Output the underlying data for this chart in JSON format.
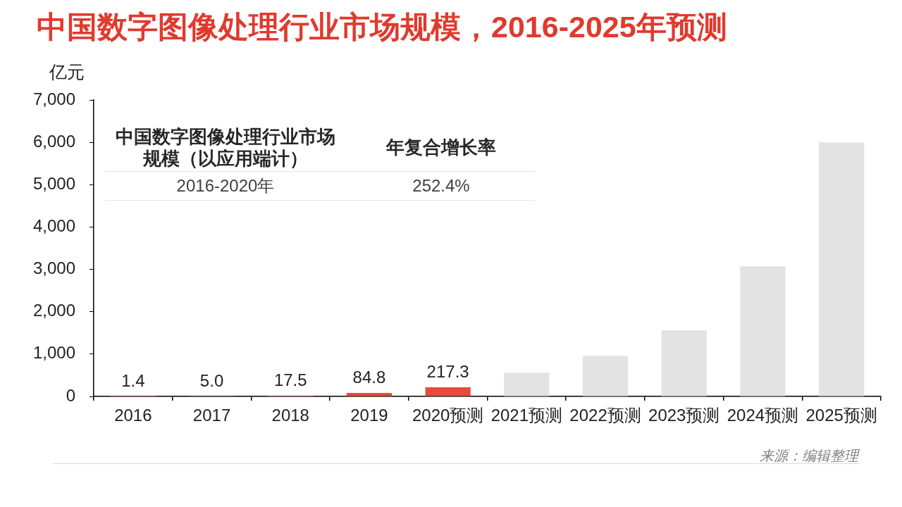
{
  "chart_data": {
    "type": "bar",
    "title": "中国数字图像处理行业市场规模，2016-2025年预测",
    "ylabel": "亿元",
    "categories": [
      "2016",
      "2017",
      "2018",
      "2019",
      "2020预测",
      "2021预测",
      "2022预测",
      "2023预测",
      "2024预测",
      "2025预测"
    ],
    "values": [
      1.4,
      5,
      17.5,
      84.8,
      217.3,
      560,
      960,
      1560,
      3070,
      6000
    ],
    "value_labels": [
      "1.4",
      "5.0",
      "17.5",
      "84.8",
      "217.3",
      null,
      null,
      null,
      null,
      null
    ],
    "colors": [
      "#e84a3c",
      "#e84a3c",
      "#e84a3c",
      "#e84a3c",
      "#e84a3c",
      "#e3e3e3",
      "#e3e3e3",
      "#e3e3e3",
      "#e3e3e3",
      "#e3e3e3"
    ],
    "ylim": [
      0,
      7000
    ],
    "yticks": [
      0,
      {
        "value": 1000,
        "label": "1,000"
      },
      {
        "value": 2000,
        "label": "2,000"
      },
      {
        "value": 3000,
        "label": "3,000"
      },
      {
        "value": 4000,
        "label": "4,000"
      },
      {
        "value": 5000,
        "label": "5,000"
      },
      {
        "value": 6000,
        "label": "6,000"
      },
      {
        "value": 7000,
        "label": "7,000"
      }
    ],
    "grid": false,
    "annotations": [
      "中国数字图像处理行业市场规模（以应用端计）",
      "年复合增长率",
      "2016-2020年",
      "252.4%",
      "来源：编辑整理"
    ]
  }
}
